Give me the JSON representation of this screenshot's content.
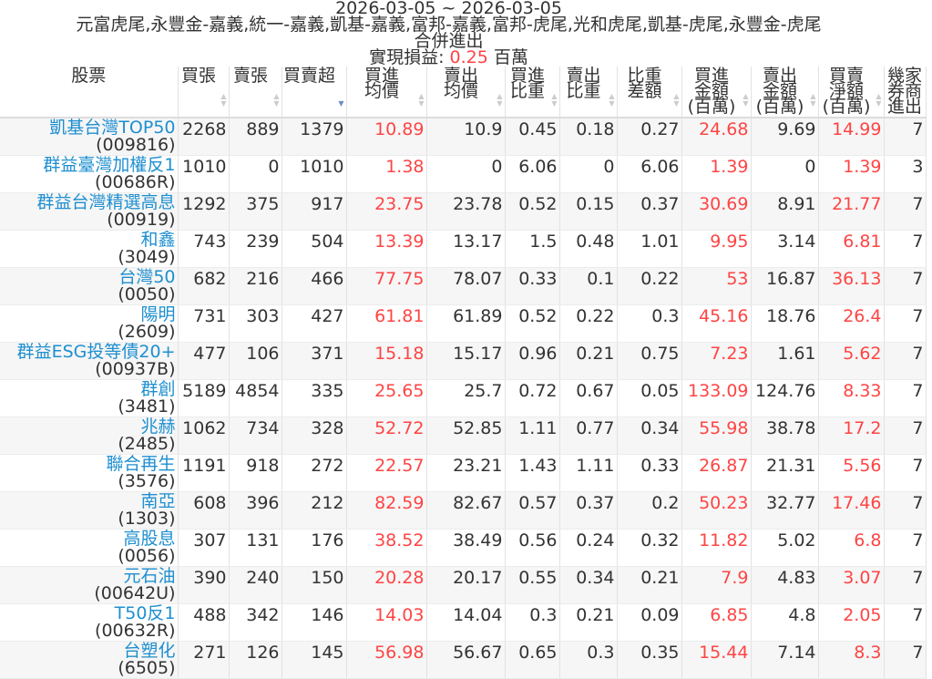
{
  "header": {
    "date_range": "2026-03-05 ~ 2026-03-05",
    "brokers": "元富虎尾,永豐金-嘉義,統一-嘉義,凱基-嘉義,富邦-嘉義,富邦-虎尾,光和虎尾,凱基-虎尾,永豐金-虎尾",
    "mode": "合併進出",
    "pnl_label": "實現損益: ",
    "pnl_value": "0.25",
    "pnl_unit": " 百萬"
  },
  "colors": {
    "name": "#1e8fd0",
    "positive": "#ff4444"
  },
  "columns": [
    "股票",
    "買張",
    "賣張",
    "買賣超",
    "買進\n均價",
    "賣出\n均價",
    "買進\n比重",
    "賣出\n比重",
    "比重\n差額",
    "買進\n金額\n(百萬)",
    "賣出\n金額\n(百萬)",
    "買賣\n淨額\n(百萬)",
    "幾家\n券商\n進出"
  ],
  "sorted_column": 3,
  "rows": [
    [
      "凱基台灣TOP50",
      "(009816)",
      "2268",
      "889",
      "1379",
      "10.89",
      "10.9",
      "0.45",
      "0.18",
      "0.27",
      "24.68",
      "9.69",
      "14.99",
      "7"
    ],
    [
      "群益臺灣加權反1",
      "(00686R)",
      "1010",
      "0",
      "1010",
      "1.38",
      "0",
      "6.06",
      "0",
      "6.06",
      "1.39",
      "0",
      "1.39",
      "3"
    ],
    [
      "群益台灣精選高息",
      "(00919)",
      "1292",
      "375",
      "917",
      "23.75",
      "23.78",
      "0.52",
      "0.15",
      "0.37",
      "30.69",
      "8.91",
      "21.77",
      "7"
    ],
    [
      "和鑫",
      "(3049)",
      "743",
      "239",
      "504",
      "13.39",
      "13.17",
      "1.5",
      "0.48",
      "1.01",
      "9.95",
      "3.14",
      "6.81",
      "7"
    ],
    [
      "台灣50",
      "(0050)",
      "682",
      "216",
      "466",
      "77.75",
      "78.07",
      "0.33",
      "0.1",
      "0.22",
      "53",
      "16.87",
      "36.13",
      "7"
    ],
    [
      "陽明",
      "(2609)",
      "731",
      "303",
      "427",
      "61.81",
      "61.89",
      "0.52",
      "0.22",
      "0.3",
      "45.16",
      "18.76",
      "26.4",
      "7"
    ],
    [
      "群益ESG投等債20+",
      "(00937B)",
      "477",
      "106",
      "371",
      "15.18",
      "15.17",
      "0.96",
      "0.21",
      "0.75",
      "7.23",
      "1.61",
      "5.62",
      "7"
    ],
    [
      "群創",
      "(3481)",
      "5189",
      "4854",
      "335",
      "25.65",
      "25.7",
      "0.72",
      "0.67",
      "0.05",
      "133.09",
      "124.76",
      "8.33",
      "7"
    ],
    [
      "兆赫",
      "(2485)",
      "1062",
      "734",
      "328",
      "52.72",
      "52.85",
      "1.11",
      "0.77",
      "0.34",
      "55.98",
      "38.78",
      "17.2",
      "7"
    ],
    [
      "聯合再生",
      "(3576)",
      "1191",
      "918",
      "272",
      "22.57",
      "23.21",
      "1.43",
      "1.11",
      "0.33",
      "26.87",
      "21.31",
      "5.56",
      "7"
    ],
    [
      "南亞",
      "(1303)",
      "608",
      "396",
      "212",
      "82.59",
      "82.67",
      "0.57",
      "0.37",
      "0.2",
      "50.23",
      "32.77",
      "17.46",
      "7"
    ],
    [
      "高股息",
      "(0056)",
      "307",
      "131",
      "176",
      "38.52",
      "38.49",
      "0.56",
      "0.24",
      "0.32",
      "11.82",
      "5.02",
      "6.8",
      "7"
    ],
    [
      "元石油",
      "(00642U)",
      "390",
      "240",
      "150",
      "20.28",
      "20.17",
      "0.55",
      "0.34",
      "0.21",
      "7.9",
      "4.83",
      "3.07",
      "7"
    ],
    [
      "T50反1",
      "(00632R)",
      "488",
      "342",
      "146",
      "14.03",
      "14.04",
      "0.3",
      "0.21",
      "0.09",
      "6.85",
      "4.8",
      "2.05",
      "7"
    ],
    [
      "台塑化",
      "(6505)",
      "271",
      "126",
      "145",
      "56.98",
      "56.67",
      "0.65",
      "0.3",
      "0.35",
      "15.44",
      "7.14",
      "8.3",
      "7"
    ]
  ]
}
